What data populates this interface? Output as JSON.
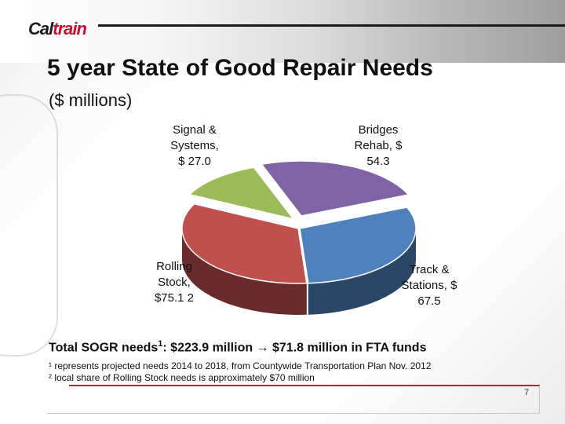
{
  "header": {
    "logo_text_a": "Cal",
    "logo_text_b": "train"
  },
  "slide": {
    "title": "5 year State of Good Repair Needs",
    "subtitle": "($ millions)",
    "total_prefix": "Total SOGR needs",
    "total_sup": "1",
    "total_rest": ": $223.9 million → $71.8 million in FTA funds",
    "footnote1": "¹ represents projected needs 2014 to 2018, from Countywide Transportation Plan Nov. 2012",
    "footnote2": "² local share of Rolling Stock needs is approximately $70 million",
    "page_number": "7"
  },
  "colors": {
    "accent_red": "#c8102e",
    "bridges": "#7f63a4",
    "track": "#4f81bd",
    "rolling": "#c0504d",
    "signal": "#9bbb59"
  },
  "chart_data": {
    "type": "pie",
    "title": "",
    "slices": [
      {
        "label": "Bridges Rehab, $ 54.3",
        "value": 54.3
      },
      {
        "label": "Track & Stations, $ 67.5",
        "value": 67.5
      },
      {
        "label": "Rolling Stock, $75.1 2",
        "value": 75.12
      },
      {
        "label": "Signal & Systems, $ 27.0",
        "value": 27.0
      }
    ],
    "labels_display": {
      "bridges": "Bridges\nRehab, $\n54.3",
      "track": "Track &\nStations, $\n67.5",
      "rolling": "Rolling\nStock,\n$75.1 2",
      "signal": "Signal &\nSystems,\n$ 27.0"
    }
  }
}
